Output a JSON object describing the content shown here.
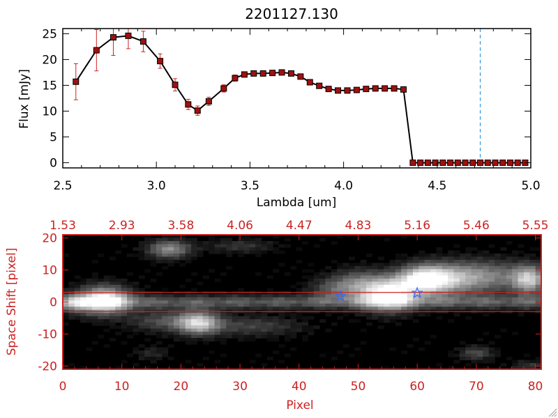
{
  "title": "2201127.130",
  "colors": {
    "text": "#000000",
    "accent_red": "#cc2222",
    "marker_fill": "#a01010",
    "line": "#000000",
    "dashed_blue": "#3399dd",
    "star_blue": "#3366ff"
  },
  "chart_data": [
    {
      "type": "line",
      "title": "2201127.130",
      "xlabel": "Lambda [um]",
      "ylabel": "Flux [mJy]",
      "xlim": [
        2.5,
        5.0
      ],
      "ylim": [
        -1,
        26
      ],
      "xticks": [
        2.5,
        3.0,
        3.5,
        4.0,
        4.5,
        5.0
      ],
      "xtick_labels": [
        "2.5",
        "3.0",
        "3.5",
        "4.0",
        "4.5",
        "5.0"
      ],
      "yticks": [
        0,
        5,
        10,
        15,
        20,
        25
      ],
      "ytick_labels": [
        "0",
        "5",
        "10",
        "15",
        "20",
        "25"
      ],
      "vline_x": 4.73,
      "series": [
        {
          "name": "flux",
          "x": [
            2.57,
            2.68,
            2.77,
            2.85,
            2.93,
            3.02,
            3.1,
            3.17,
            3.22,
            3.28,
            3.36,
            3.42,
            3.47,
            3.52,
            3.57,
            3.62,
            3.67,
            3.72,
            3.77,
            3.82,
            3.87,
            3.92,
            3.97,
            4.02,
            4.07,
            4.12,
            4.17,
            4.22,
            4.27,
            4.32,
            4.37,
            4.41,
            4.45,
            4.49,
            4.53,
            4.57,
            4.61,
            4.65,
            4.69,
            4.73,
            4.77,
            4.81,
            4.85,
            4.89,
            4.93,
            4.97
          ],
          "y": [
            15.7,
            21.8,
            24.3,
            24.6,
            23.5,
            19.7,
            15.1,
            11.3,
            10.1,
            11.9,
            14.4,
            16.4,
            17.1,
            17.3,
            17.3,
            17.4,
            17.5,
            17.3,
            16.7,
            15.6,
            14.9,
            14.3,
            14.0,
            14.0,
            14.1,
            14.3,
            14.4,
            14.4,
            14.4,
            14.2,
            0,
            0,
            0,
            0,
            0,
            0,
            0,
            0,
            0,
            0,
            0,
            0,
            0,
            0,
            0,
            0
          ],
          "yerr": [
            3.5,
            4.0,
            3.5,
            2.5,
            2.0,
            1.4,
            1.2,
            1.0,
            0.9,
            0.8,
            0.7,
            0.6,
            0.5,
            0.5,
            0.5,
            0.5,
            0.5,
            0.5,
            0.5,
            0.5,
            0.5,
            0.5,
            0.5,
            0.5,
            0.5,
            0.5,
            0.5,
            0.5,
            0.5,
            0.5,
            0.2,
            0.2,
            0.2,
            0.2,
            0.2,
            0.2,
            0.2,
            0.2,
            0.2,
            0.2,
            0.2,
            0.2,
            0.2,
            0.2,
            0.2,
            0.2
          ]
        }
      ]
    },
    {
      "type": "heatmap",
      "xlabel": "Pixel",
      "ylabel": "Space Shift [pixel]",
      "xlim": [
        0,
        81
      ],
      "ylim": [
        -21,
        21
      ],
      "xticks": [
        0,
        10,
        20,
        30,
        40,
        50,
        60,
        70,
        80
      ],
      "xtick_labels": [
        "0",
        "10",
        "20",
        "30",
        "40",
        "50",
        "60",
        "70",
        "80"
      ],
      "yticks": [
        -20,
        -10,
        0,
        10,
        20
      ],
      "ytick_labels": [
        "-20",
        "-10",
        "0",
        "10",
        "20"
      ],
      "top_axis_positions": [
        0,
        10,
        20,
        30,
        40,
        50,
        60,
        70,
        80
      ],
      "top_axis_labels": [
        "1.53",
        "2.93",
        "3.58",
        "4.06",
        "4.47",
        "4.83",
        "5.16",
        "5.46",
        "5.55"
      ],
      "hlines_y": [
        3,
        -3
      ],
      "stars": [
        {
          "x": 47,
          "y": 1.8
        },
        {
          "x": 60,
          "y": 2.8
        }
      ],
      "blobs": [
        {
          "x": 7,
          "y": 0.5,
          "sx": 3,
          "sy": 3,
          "amp": 0.95
        },
        {
          "x": 2,
          "y": -0.5,
          "sx": 2,
          "sy": 2,
          "amp": 0.35
        },
        {
          "x": 23,
          "y": -6.5,
          "sx": 2.5,
          "sy": 2.5,
          "amp": 0.75
        },
        {
          "x": 17,
          "y": -6.0,
          "sx": 4,
          "sy": 2.2,
          "amp": 0.3
        },
        {
          "x": 32,
          "y": -7.5,
          "sx": 6,
          "sy": 2.2,
          "amp": 0.25
        },
        {
          "x": 18,
          "y": 16.5,
          "sx": 2.5,
          "sy": 2,
          "amp": 0.55
        },
        {
          "x": 30,
          "y": 17.5,
          "sx": 4,
          "sy": 1.5,
          "amp": 0.2
        },
        {
          "x": 55,
          "y": 2.5,
          "sx": 3.2,
          "sy": 3.5,
          "amp": 1.0
        },
        {
          "x": 61,
          "y": 7,
          "sx": 3,
          "sy": 3,
          "amp": 0.85
        },
        {
          "x": 65,
          "y": 7,
          "sx": 4,
          "sy": 3.5,
          "amp": 0.5
        },
        {
          "x": 72,
          "y": 8,
          "sx": 5,
          "sy": 3.5,
          "amp": 0.45
        },
        {
          "x": 79,
          "y": 7,
          "sx": 2,
          "sy": 3,
          "amp": 0.7
        },
        {
          "x": 50,
          "y": 6,
          "sx": 3,
          "sy": 3,
          "amp": 0.35
        },
        {
          "x": 46,
          "y": 4,
          "sx": 3,
          "sy": 2.5,
          "amp": 0.3
        },
        {
          "x": 70,
          "y": -16,
          "sx": 2,
          "sy": 1.5,
          "amp": 0.3
        },
        {
          "x": 15,
          "y": -16,
          "sx": 2,
          "sy": 1.5,
          "amp": 0.15
        },
        {
          "x": 79,
          "y": -20,
          "sx": 2,
          "sy": 1.2,
          "amp": 0.2
        }
      ],
      "trace": {
        "y": 0,
        "sy": 1.5,
        "amp": 0.35
      }
    }
  ]
}
